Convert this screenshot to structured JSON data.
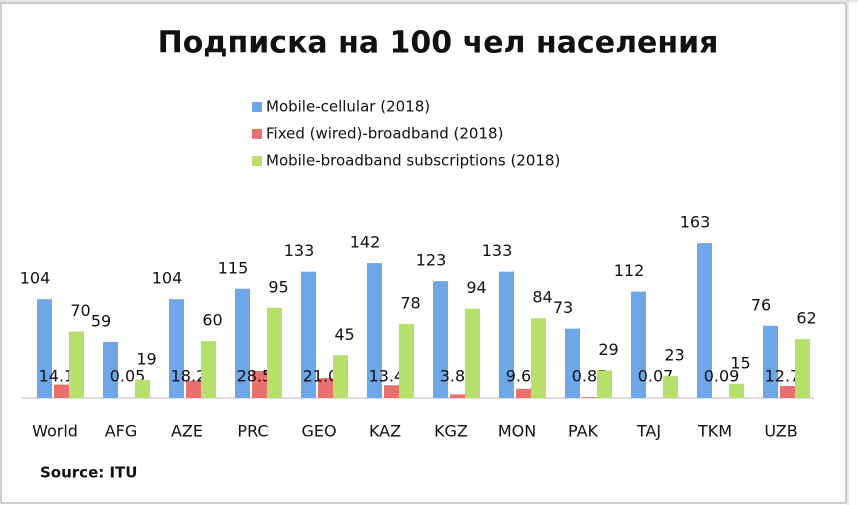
{
  "chart_data": {
    "type": "bar",
    "title": "Подписка на 100 чел населения",
    "source": "Source: ITU",
    "categories": [
      "World",
      "AFG",
      "AZE",
      "PRC",
      "GEO",
      "KAZ",
      "KGZ",
      "MON",
      "PAK",
      "TAJ",
      "TKM",
      "UZB"
    ],
    "series": [
      {
        "name": "Mobile-cellular (2018)",
        "color": "#6ea6ea",
        "values": [
          104,
          59,
          104,
          115,
          133,
          142,
          123,
          133,
          73,
          112,
          163,
          76
        ]
      },
      {
        "name": "Fixed (wired)-broadband (2018)",
        "color": "#e8716f",
        "values": [
          14.1,
          0.05,
          18.2,
          28.54,
          21.0,
          13.44,
          3.81,
          9.66,
          0.85,
          0.07,
          0.09,
          12.7
        ],
        "value_labels": [
          "14.10",
          "0.05",
          "18.20",
          "28.54",
          "21.00",
          "13.44",
          "3.81",
          "9.66",
          "0.85",
          "0.07",
          "0.09",
          "12.70"
        ]
      },
      {
        "name": "Mobile-broadband subscriptions (2018)",
        "color": "#b6e06a",
        "values": [
          70,
          19,
          60,
          95,
          45,
          78,
          94,
          84,
          29,
          23,
          15,
          62
        ]
      }
    ],
    "ylim": [
      0,
      170
    ]
  }
}
